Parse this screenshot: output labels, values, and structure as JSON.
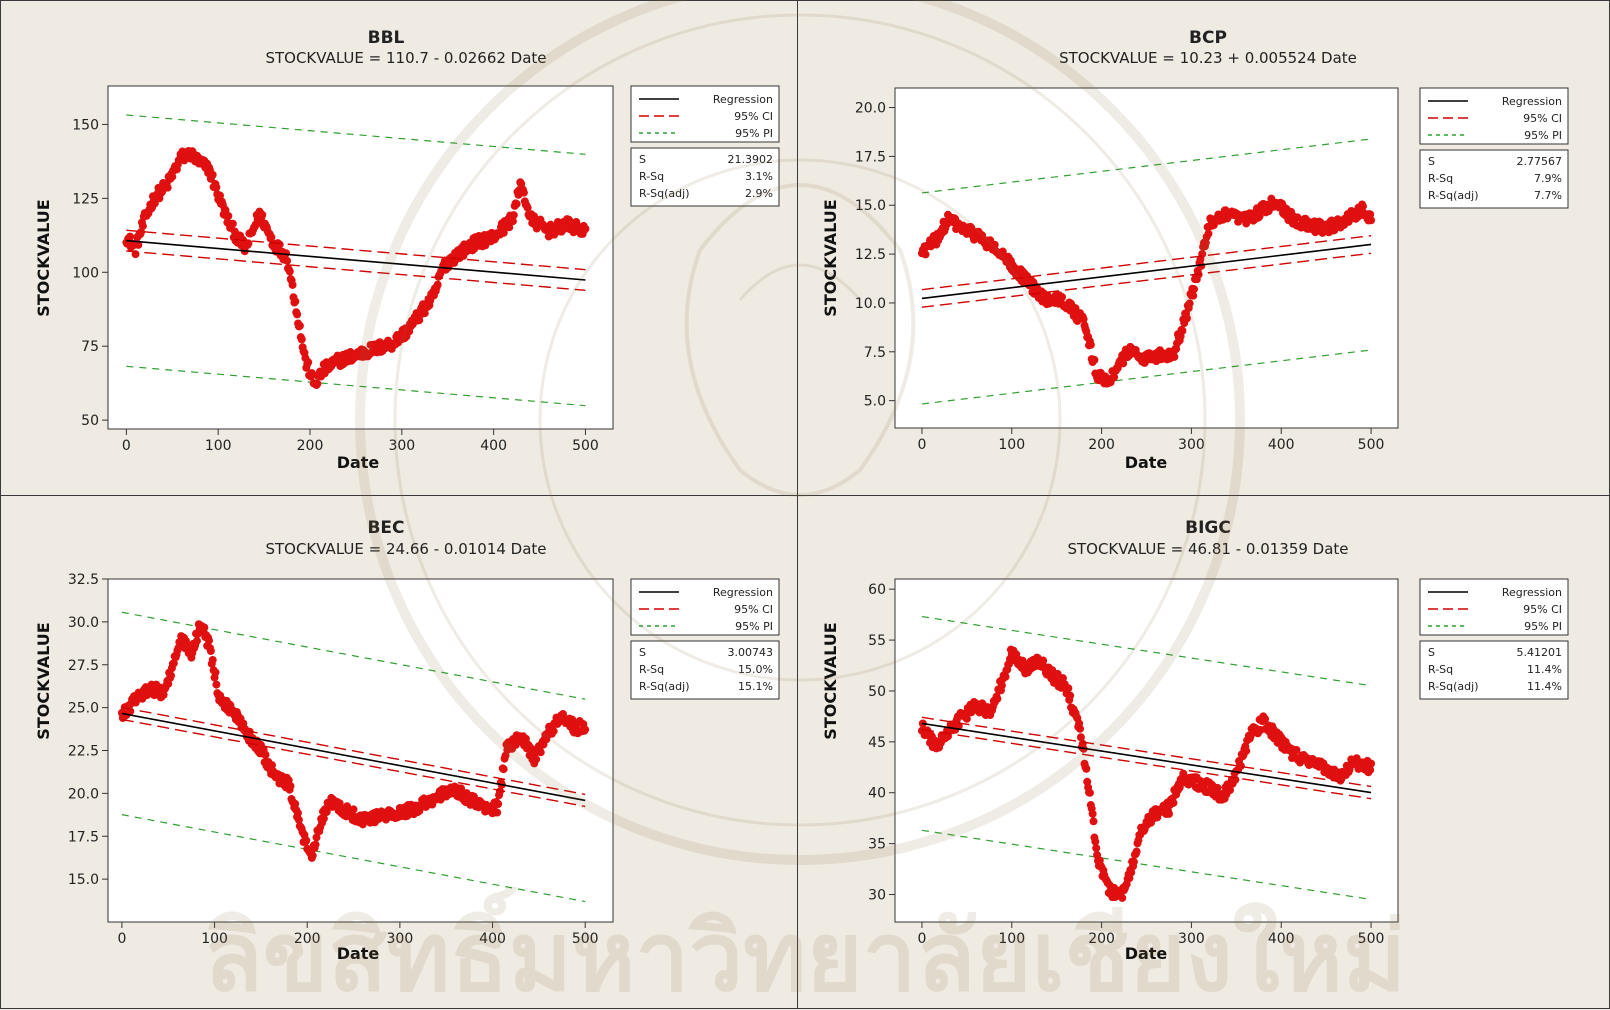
{
  "colors": {
    "background": "#efebe2",
    "plot_area": "#ffffff",
    "points": "#e01010",
    "regression": "#000000",
    "ci": "#d00000",
    "pi": "#2ea02e"
  },
  "watermark_text": "ลิขสิทธิ์มหาวิทยาลัยเชียงใหม่",
  "chart_data": [
    {
      "type": "scatter",
      "title": "BBL",
      "equation": "STOCKVALUE = 110.7 - 0.02662 Date",
      "xlabel": "Date",
      "ylabel": "STOCKVALUE",
      "xlim": [
        -20,
        530
      ],
      "ylim": [
        47,
        163
      ],
      "xticks": [
        0,
        100,
        200,
        300,
        400,
        500
      ],
      "yticks": [
        50,
        75,
        100,
        125,
        150
      ],
      "ytick_labels": [
        "50",
        "75",
        "100",
        "125",
        "150"
      ],
      "regression": {
        "intercept": 110.7,
        "slope": -0.02662,
        "ci_half": 3.5,
        "pi_half": 42.5
      },
      "legend": [
        "Regression",
        "95% CI",
        "95% PI"
      ],
      "stats": [
        [
          "S",
          "21.3902"
        ],
        [
          "R-Sq",
          "3.1%"
        ],
        [
          "R-Sq(adj)",
          "2.9%"
        ]
      ],
      "series_anchors": [
        [
          0,
          112
        ],
        [
          10,
          108
        ],
        [
          20,
          118
        ],
        [
          30,
          125
        ],
        [
          45,
          130
        ],
        [
          60,
          139
        ],
        [
          70,
          140
        ],
        [
          80,
          137
        ],
        [
          90,
          135
        ],
        [
          100,
          126
        ],
        [
          110,
          118
        ],
        [
          120,
          112
        ],
        [
          130,
          108
        ],
        [
          145,
          120
        ],
        [
          160,
          110
        ],
        [
          175,
          105
        ],
        [
          185,
          88
        ],
        [
          195,
          70
        ],
        [
          205,
          62
        ],
        [
          215,
          67
        ],
        [
          230,
          70
        ],
        [
          250,
          72
        ],
        [
          270,
          74
        ],
        [
          290,
          76
        ],
        [
          305,
          80
        ],
        [
          320,
          86
        ],
        [
          335,
          92
        ],
        [
          345,
          102
        ],
        [
          360,
          106
        ],
        [
          380,
          110
        ],
        [
          400,
          112
        ],
        [
          420,
          118
        ],
        [
          430,
          130
        ],
        [
          440,
          118
        ],
        [
          460,
          114
        ],
        [
          480,
          116
        ],
        [
          500,
          114
        ]
      ]
    },
    {
      "type": "scatter",
      "title": "BCP",
      "equation": "STOCKVALUE = 10.23 + 0.005524 Date",
      "xlabel": "Date",
      "ylabel": "STOCKVALUE",
      "xlim": [
        -30,
        530
      ],
      "ylim": [
        3.6,
        21
      ],
      "xticks": [
        0,
        100,
        200,
        300,
        400,
        500
      ],
      "yticks": [
        5,
        7.5,
        10,
        12.5,
        15,
        17.5,
        20
      ],
      "ytick_labels": [
        "5.0",
        "7.5",
        "10.0",
        "12.5",
        "15.0",
        "17.5",
        "20.0"
      ],
      "regression": {
        "intercept": 10.23,
        "slope": 0.005524,
        "ci_half": 0.45,
        "pi_half": 5.4
      },
      "legend": [
        "Regression",
        "95% CI",
        "95% PI"
      ],
      "stats": [
        [
          "S",
          "2.77567"
        ],
        [
          "R-Sq",
          "7.9%"
        ],
        [
          "R-Sq(adj)",
          "7.7%"
        ]
      ],
      "series_anchors": [
        [
          0,
          12.6
        ],
        [
          15,
          13.2
        ],
        [
          30,
          14.3
        ],
        [
          45,
          13.8
        ],
        [
          60,
          13.5
        ],
        [
          80,
          12.8
        ],
        [
          100,
          11.9
        ],
        [
          120,
          11.0
        ],
        [
          135,
          10.2
        ],
        [
          150,
          10.3
        ],
        [
          165,
          9.8
        ],
        [
          180,
          9.0
        ],
        [
          195,
          6.3
        ],
        [
          205,
          6.0
        ],
        [
          215,
          6.4
        ],
        [
          230,
          7.6
        ],
        [
          245,
          7.2
        ],
        [
          265,
          7.3
        ],
        [
          280,
          7.4
        ],
        [
          295,
          9.5
        ],
        [
          310,
          12.0
        ],
        [
          320,
          14.0
        ],
        [
          340,
          14.5
        ],
        [
          360,
          14.2
        ],
        [
          380,
          14.8
        ],
        [
          395,
          15.2
        ],
        [
          410,
          14.4
        ],
        [
          430,
          14.0
        ],
        [
          450,
          13.8
        ],
        [
          470,
          14.2
        ],
        [
          490,
          14.8
        ],
        [
          500,
          14.3
        ]
      ]
    },
    {
      "type": "scatter",
      "title": "BEC",
      "equation": "STOCKVALUE = 24.66 - 0.01014 Date",
      "xlabel": "Date",
      "ylabel": "STOCKVALUE",
      "xlim": [
        -15,
        530
      ],
      "ylim": [
        12.5,
        32.5
      ],
      "xticks": [
        0,
        100,
        200,
        300,
        400,
        500
      ],
      "yticks": [
        15,
        17.5,
        20,
        22.5,
        25,
        27.5,
        30,
        32.5
      ],
      "ytick_labels": [
        "15.0",
        "17.5",
        "20.0",
        "22.5",
        "25.0",
        "27.5",
        "30.0",
        "32.5"
      ],
      "regression": {
        "intercept": 24.66,
        "slope": -0.01014,
        "ci_half": 0.35,
        "pi_half": 5.9
      },
      "legend": [
        "Regression",
        "95% CI",
        "95% PI"
      ],
      "stats": [
        [
          "S",
          "3.00743"
        ],
        [
          "R-Sq",
          "15.0%"
        ],
        [
          "R-Sq(adj)",
          "15.1%"
        ]
      ],
      "series_anchors": [
        [
          0,
          24.5
        ],
        [
          15,
          25.5
        ],
        [
          30,
          26.2
        ],
        [
          45,
          25.8
        ],
        [
          55,
          27.5
        ],
        [
          65,
          29.0
        ],
        [
          75,
          28.0
        ],
        [
          85,
          30.0
        ],
        [
          95,
          28.5
        ],
        [
          105,
          25.5
        ],
        [
          120,
          24.8
        ],
        [
          135,
          23.5
        ],
        [
          150,
          22.5
        ],
        [
          165,
          21.0
        ],
        [
          180,
          20.5
        ],
        [
          195,
          17.5
        ],
        [
          205,
          16.5
        ],
        [
          215,
          18.5
        ],
        [
          225,
          19.5
        ],
        [
          240,
          19.0
        ],
        [
          260,
          18.5
        ],
        [
          280,
          18.7
        ],
        [
          300,
          18.8
        ],
        [
          320,
          19.2
        ],
        [
          340,
          19.8
        ],
        [
          360,
          20.2
        ],
        [
          380,
          19.5
        ],
        [
          395,
          19.0
        ],
        [
          405,
          19.2
        ],
        [
          415,
          22.5
        ],
        [
          430,
          23.5
        ],
        [
          445,
          22.0
        ],
        [
          460,
          23.5
        ],
        [
          475,
          24.5
        ],
        [
          490,
          23.8
        ],
        [
          500,
          24.0
        ]
      ]
    },
    {
      "type": "scatter",
      "title": "BIGC",
      "equation": "STOCKVALUE = 46.81 - 0.01359 Date",
      "xlabel": "Date",
      "ylabel": "STOCKVALUE",
      "xlim": [
        -30,
        530
      ],
      "ylim": [
        27.3,
        61
      ],
      "xticks": [
        0,
        100,
        200,
        300,
        400,
        500
      ],
      "yticks": [
        30,
        35,
        40,
        45,
        50,
        55,
        60
      ],
      "ytick_labels": [
        "30",
        "35",
        "40",
        "45",
        "50",
        "55",
        "60"
      ],
      "regression": {
        "intercept": 46.81,
        "slope": -0.01359,
        "ci_half": 0.6,
        "pi_half": 10.5
      },
      "legend": [
        "Regression",
        "95% CI",
        "95% PI"
      ],
      "stats": [
        [
          "S",
          "5.41201"
        ],
        [
          "R-Sq",
          "11.4%"
        ],
        [
          "R-Sq(adj)",
          "11.4%"
        ]
      ],
      "series_anchors": [
        [
          0,
          46.5
        ],
        [
          15,
          44.5
        ],
        [
          30,
          46.0
        ],
        [
          45,
          47.5
        ],
        [
          60,
          48.5
        ],
        [
          75,
          48.0
        ],
        [
          90,
          51.0
        ],
        [
          100,
          54.0
        ],
        [
          115,
          52.0
        ],
        [
          130,
          53.0
        ],
        [
          145,
          51.5
        ],
        [
          160,
          50.5
        ],
        [
          175,
          46.5
        ],
        [
          185,
          41.0
        ],
        [
          195,
          34.0
        ],
        [
          205,
          31.0
        ],
        [
          220,
          29.5
        ],
        [
          232,
          32.0
        ],
        [
          245,
          36.5
        ],
        [
          260,
          38.0
        ],
        [
          275,
          38.5
        ],
        [
          290,
          41.5
        ],
        [
          305,
          41.0
        ],
        [
          320,
          40.5
        ],
        [
          335,
          39.5
        ],
        [
          350,
          42.0
        ],
        [
          365,
          45.5
        ],
        [
          380,
          47.0
        ],
        [
          395,
          45.5
        ],
        [
          410,
          44.0
        ],
        [
          430,
          43.0
        ],
        [
          450,
          42.5
        ],
        [
          465,
          41.5
        ],
        [
          480,
          43.0
        ],
        [
          500,
          42.5
        ]
      ]
    }
  ]
}
